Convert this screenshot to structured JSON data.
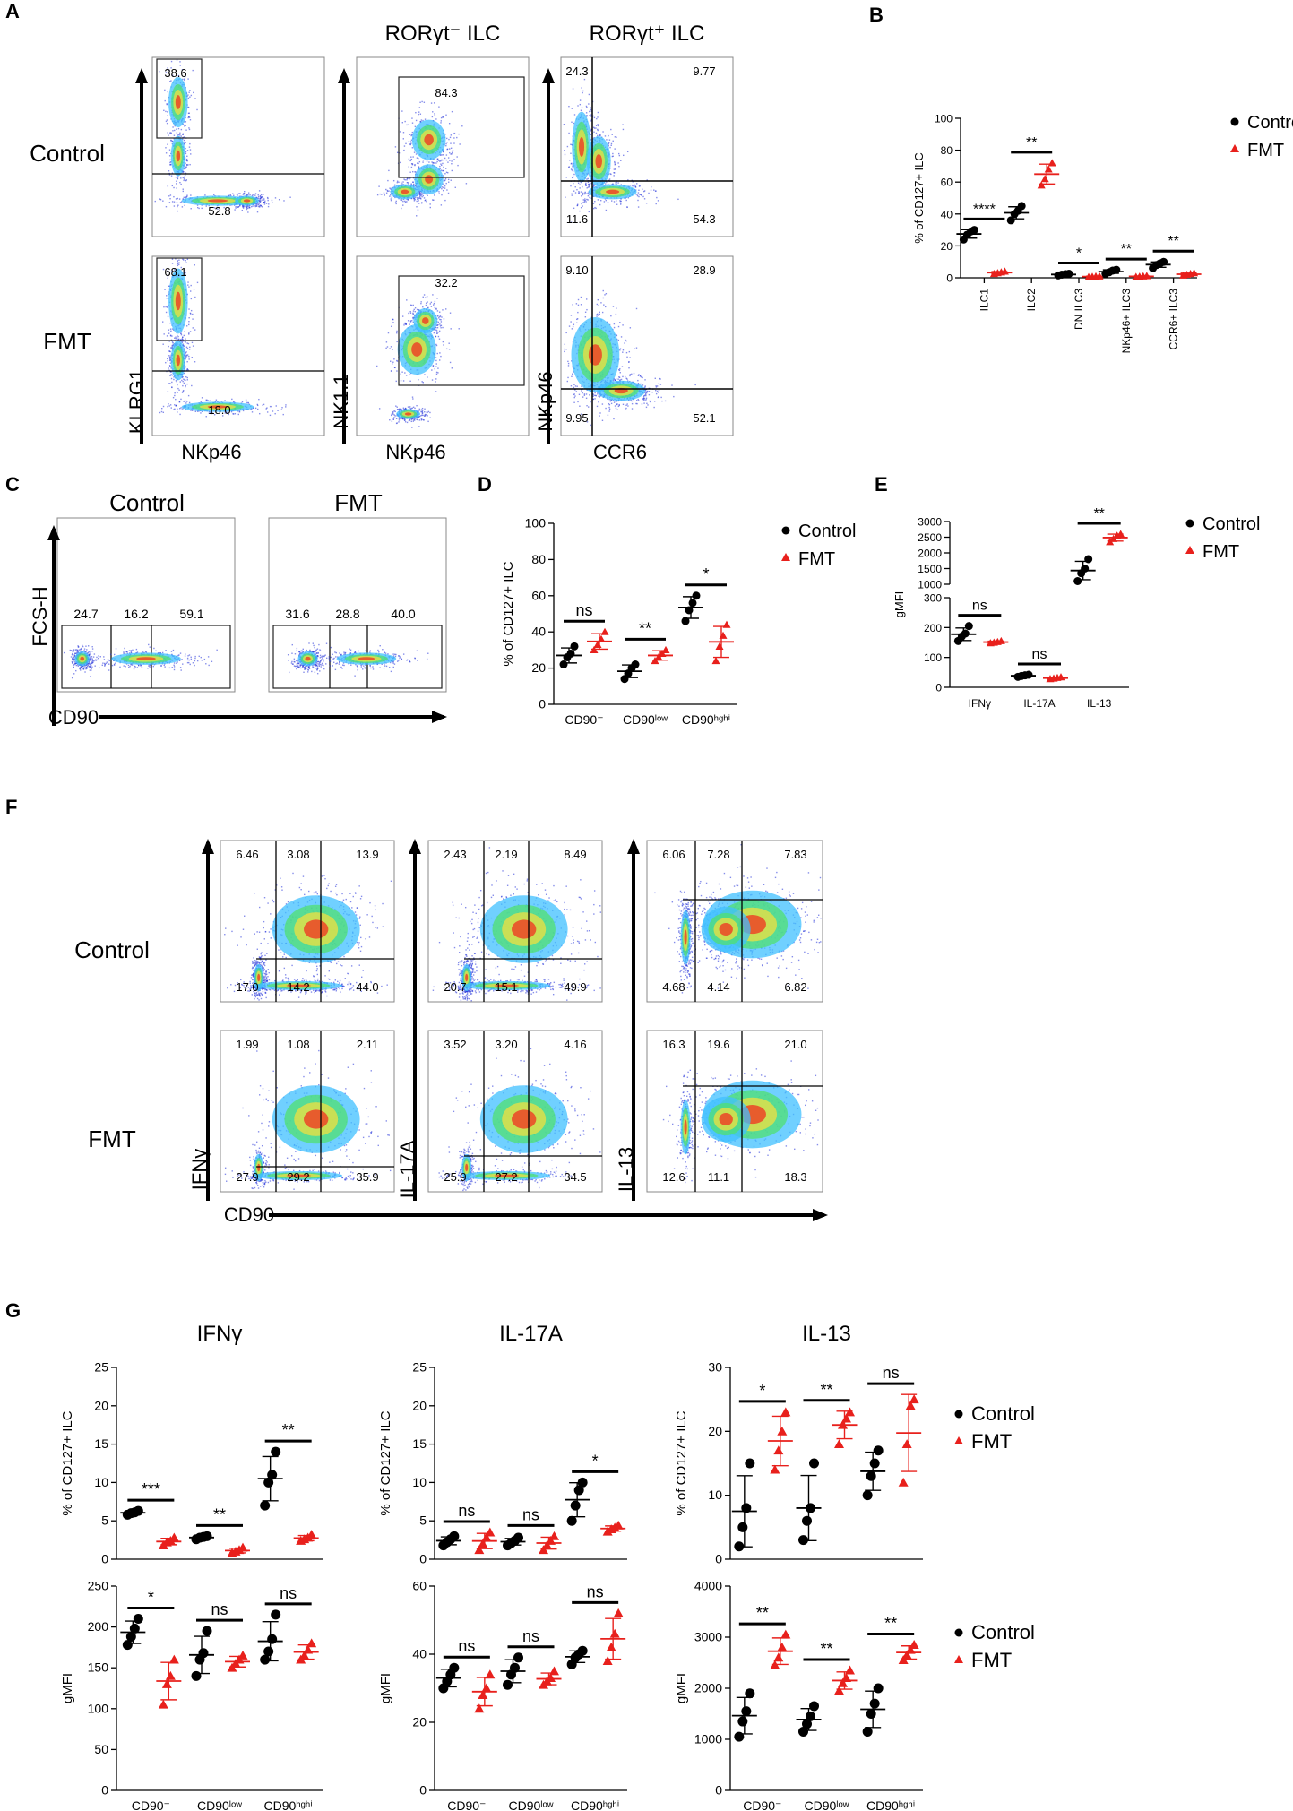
{
  "colors": {
    "control": "#000000",
    "fmt": "#e8201c",
    "gate": "#000000"
  },
  "panel_letters": {
    "A": "A",
    "B": "B",
    "C": "C",
    "D": "D",
    "E": "E",
    "F": "F",
    "G": "G"
  },
  "panel_a": {
    "row_labels": [
      "Control",
      "FMT"
    ],
    "col_titles": [
      "",
      "RORγt⁻ ILC",
      "RORγt⁺ ILC"
    ],
    "y_labels": [
      "KLRG1",
      "NK1.1",
      "NKp46"
    ],
    "x_labels": [
      "NKp46",
      "NKp46",
      "CCR6"
    ],
    "gates": [
      {
        "col": 0,
        "row": 0,
        "values": [
          "38.6",
          "52.8"
        ]
      },
      {
        "col": 1,
        "row": 0,
        "values": [
          "84.3"
        ]
      },
      {
        "col": 2,
        "row": 0,
        "values": [
          "24.3",
          "9.77",
          "11.6",
          "54.3"
        ]
      },
      {
        "col": 0,
        "row": 1,
        "values": [
          "68.1",
          "18.0"
        ]
      },
      {
        "col": 1,
        "row": 1,
        "values": [
          "32.2"
        ]
      },
      {
        "col": 2,
        "row": 1,
        "values": [
          "9.10",
          "28.9",
          "9.95",
          "52.1"
        ]
      }
    ]
  },
  "panel_c": {
    "titles": [
      "Control",
      "FMT"
    ],
    "y_label": "FCS-H",
    "x_label": "CD90",
    "values": [
      [
        "24.7",
        "16.2",
        "59.1"
      ],
      [
        "31.6",
        "28.8",
        "40.0"
      ]
    ]
  },
  "panel_f": {
    "row_labels": [
      "Control",
      "FMT"
    ],
    "y_labels": [
      "IFNγ",
      "IL-17A",
      "IL-13"
    ],
    "x_label": "CD90",
    "plots": [
      {
        "top": [
          "6.46",
          "3.08",
          "13.9"
        ],
        "bottom": [
          "17.0",
          "14.2",
          "44.0"
        ]
      },
      {
        "top": [
          "2.43",
          "2.19",
          "8.49"
        ],
        "bottom": [
          "20.7",
          "15.1",
          "49.9"
        ]
      },
      {
        "top": [
          "6.06",
          "7.28",
          "7.83"
        ],
        "bottom": [
          "4.68",
          "4.14",
          "6.82"
        ]
      },
      {
        "top": [
          "1.99",
          "1.08",
          "2.11"
        ],
        "bottom": [
          "27.9",
          "29.2",
          "35.9"
        ]
      },
      {
        "top": [
          "3.52",
          "3.20",
          "4.16"
        ],
        "bottom": [
          "25.9",
          "27.2",
          "34.5"
        ]
      },
      {
        "top": [
          "16.3",
          "19.6",
          "21.0"
        ],
        "bottom": [
          "12.6",
          "11.1",
          "18.3"
        ]
      }
    ]
  },
  "legend": {
    "control": "Control",
    "fmt": "FMT"
  },
  "chart_data": [
    {
      "id": "B",
      "type": "scatter",
      "title": "",
      "ylabel": "% of CD127+ ILC",
      "ylim": [
        0,
        100
      ],
      "yticks": [
        0,
        20,
        40,
        60,
        80,
        100
      ],
      "categories": [
        "ILC1",
        "ILC2",
        "DN ILC3",
        "NKp46+ ILC3",
        "CCR6+ ILC3"
      ],
      "series": [
        {
          "name": "Control",
          "points": [
            [
              24,
              27,
              29,
              30
            ],
            [
              36,
              40,
              42,
              45
            ],
            [
              1.5,
              2,
              2.3,
              2.5
            ],
            [
              2.5,
              3.5,
              4.5,
              5
            ],
            [
              6,
              8,
              9,
              10
            ]
          ]
        },
        {
          "name": "FMT",
          "points": [
            [
              2.5,
              3,
              3.5,
              4
            ],
            [
              58,
              62,
              68,
              72
            ],
            [
              0.5,
              0.7,
              0.9,
              1
            ],
            [
              0.6,
              0.8,
              1,
              1.2
            ],
            [
              1.5,
              2,
              2.5,
              3
            ]
          ]
        }
      ],
      "significance": [
        "****",
        "**",
        "*",
        "**",
        "**"
      ],
      "legend": "top-right"
    },
    {
      "id": "D",
      "type": "scatter",
      "ylabel": "% of CD127+ ILC",
      "ylim": [
        0,
        100
      ],
      "yticks": [
        0,
        20,
        40,
        60,
        80,
        100
      ],
      "categories": [
        "CD90⁻",
        "CD90ˡᵒʷ",
        "CD90ʰᵍʰⁱ"
      ],
      "series": [
        {
          "name": "Control",
          "points": [
            [
              22,
              26,
              28,
              32
            ],
            [
              14,
              17,
              20,
              22
            ],
            [
              46,
              52,
              56,
              60
            ]
          ]
        },
        {
          "name": "FMT",
          "points": [
            [
              30,
              33,
              36,
              40
            ],
            [
              24,
              26,
              28,
              30
            ],
            [
              24,
              32,
              38,
              44
            ]
          ]
        }
      ],
      "significance": [
        "ns",
        "**",
        "*"
      ],
      "legend": "top-right"
    },
    {
      "id": "E",
      "type": "scatter",
      "ylabel": "gMFI",
      "broken_axis": true,
      "ylim_lower": [
        0,
        300
      ],
      "yticks_lower": [
        0,
        100,
        200,
        300
      ],
      "ylim_upper": [
        1000,
        3000
      ],
      "yticks_upper": [
        1000,
        1500,
        2000,
        2500,
        3000
      ],
      "categories": [
        "IFNγ",
        "IL-17A",
        "IL-13"
      ],
      "series": [
        {
          "name": "Control",
          "points": [
            [
              155,
              170,
              180,
              205
            ],
            [
              35,
              38,
              40,
              42
            ],
            [
              1100,
              1350,
              1500,
              1800
            ]
          ]
        },
        {
          "name": "FMT",
          "points": [
            [
              148,
              150,
              152,
              155
            ],
            [
              28,
              30,
              32,
              34
            ],
            [
              2350,
              2450,
              2550,
              2600
            ]
          ]
        }
      ],
      "significance": [
        "ns",
        "ns",
        "**"
      ],
      "legend": "top-right"
    },
    {
      "id": "G1",
      "type": "scatter",
      "title": "IFNγ",
      "ylabel": "% of CD127+ ILC",
      "ylim": [
        0,
        25
      ],
      "yticks": [
        0,
        5,
        10,
        15,
        20,
        25
      ],
      "categories": [
        "CD90⁻",
        "CD90ˡᵒʷ",
        "CD90ʰᵍʰⁱ"
      ],
      "series": [
        {
          "name": "Control",
          "points": [
            [
              5.8,
              6.0,
              6.1,
              6.3
            ],
            [
              2.6,
              2.8,
              2.9,
              3.0
            ],
            [
              7,
              10,
              11,
              14
            ]
          ]
        },
        {
          "name": "FMT",
          "points": [
            [
              1.8,
              2.2,
              2.4,
              2.8
            ],
            [
              0.8,
              1.0,
              1.2,
              1.5
            ],
            [
              2.4,
              2.6,
              2.8,
              3.2
            ]
          ]
        }
      ],
      "significance": [
        "***",
        "**",
        "**"
      ]
    },
    {
      "id": "G2",
      "type": "scatter",
      "title": "IL-17A",
      "ylabel": "% of CD127+ ILC",
      "ylim": [
        0,
        25
      ],
      "yticks": [
        0,
        5,
        10,
        15,
        20,
        25
      ],
      "categories": [
        "CD90⁻",
        "CD90ˡᵒʷ",
        "CD90ʰᵍʰⁱ"
      ],
      "series": [
        {
          "name": "Control",
          "points": [
            [
              1.8,
              2.2,
              2.6,
              3.0
            ],
            [
              1.8,
              2.1,
              2.4,
              2.8
            ],
            [
              5,
              7,
              9,
              10
            ]
          ]
        },
        {
          "name": "FMT",
          "points": [
            [
              1.2,
              2.0,
              2.8,
              3.5
            ],
            [
              1.2,
              1.8,
              2.4,
              3.0
            ],
            [
              3.6,
              3.9,
              4.1,
              4.4
            ]
          ]
        }
      ],
      "significance": [
        "ns",
        "ns",
        "*"
      ]
    },
    {
      "id": "G3",
      "type": "scatter",
      "title": "IL-13",
      "ylabel": "% of CD127+ ILC",
      "ylim": [
        0,
        30
      ],
      "yticks": [
        0,
        10,
        20,
        30
      ],
      "categories": [
        "CD90⁻",
        "CD90ˡᵒʷ",
        "CD90ʰᵍʰⁱ"
      ],
      "series": [
        {
          "name": "Control",
          "points": [
            [
              2,
              5,
              8,
              15
            ],
            [
              3,
              6,
              8,
              15
            ],
            [
              10,
              13,
              15,
              17
            ]
          ]
        },
        {
          "name": "FMT",
          "points": [
            [
              14,
              17,
              20,
              23
            ],
            [
              18,
              21,
              22,
              23
            ],
            [
              12,
              18,
              24,
              25
            ]
          ]
        }
      ],
      "significance": [
        "*",
        "**",
        "ns"
      ],
      "legend": "top-right"
    },
    {
      "id": "G4",
      "type": "scatter",
      "ylabel": "gMFI",
      "ylim": [
        0,
        250
      ],
      "yticks": [
        0,
        50,
        100,
        150,
        200,
        250
      ],
      "categories": [
        "CD90⁻",
        "CD90ˡᵒʷ",
        "CD90ʰᵍʰⁱ"
      ],
      "series": [
        {
          "name": "Control",
          "points": [
            [
              178,
              188,
              198,
              210
            ],
            [
              140,
              160,
              168,
              195
            ],
            [
              160,
              170,
              185,
              215
            ]
          ]
        },
        {
          "name": "FMT",
          "points": [
            [
              105,
              130,
              140,
              160
            ],
            [
              150,
              155,
              160,
              165
            ],
            [
              160,
              165,
              172,
              180
            ]
          ]
        }
      ],
      "significance": [
        "*",
        "ns",
        "ns"
      ]
    },
    {
      "id": "G5",
      "type": "scatter",
      "ylabel": "gMFI",
      "ylim": [
        0,
        60
      ],
      "yticks": [
        0,
        20,
        40,
        60
      ],
      "categories": [
        "CD90⁻",
        "CD90ˡᵒʷ",
        "CD90ʰᵍʰⁱ"
      ],
      "series": [
        {
          "name": "Control",
          "points": [
            [
              30,
              32,
              34,
              36
            ],
            [
              31,
              34,
              36,
              39
            ],
            [
              37,
              39,
              40,
              41
            ]
          ]
        },
        {
          "name": "FMT",
          "points": [
            [
              24,
              28,
              30,
              34
            ],
            [
              31,
              32,
              33,
              35
            ],
            [
              38,
              42,
              46,
              52
            ]
          ]
        }
      ],
      "significance": [
        "ns",
        "ns",
        "ns"
      ]
    },
    {
      "id": "G6",
      "type": "scatter",
      "ylabel": "gMFI",
      "ylim": [
        0,
        4000
      ],
      "yticks": [
        0,
        1000,
        2000,
        3000,
        4000
      ],
      "categories": [
        "CD90⁻",
        "CD90ˡᵒʷ",
        "CD90ʰᵍʰⁱ"
      ],
      "series": [
        {
          "name": "Control",
          "points": [
            [
              1050,
              1350,
              1550,
              1900
            ],
            [
              1150,
              1300,
              1450,
              1650
            ],
            [
              1150,
              1500,
              1700,
              2000
            ]
          ]
        },
        {
          "name": "FMT",
          "points": [
            [
              2450,
              2600,
              2800,
              3050
            ],
            [
              1950,
              2100,
              2200,
              2350
            ],
            [
              2550,
              2650,
              2750,
              2850
            ]
          ]
        }
      ],
      "significance": [
        "**",
        "**",
        "**"
      ],
      "legend": "top-right"
    }
  ]
}
